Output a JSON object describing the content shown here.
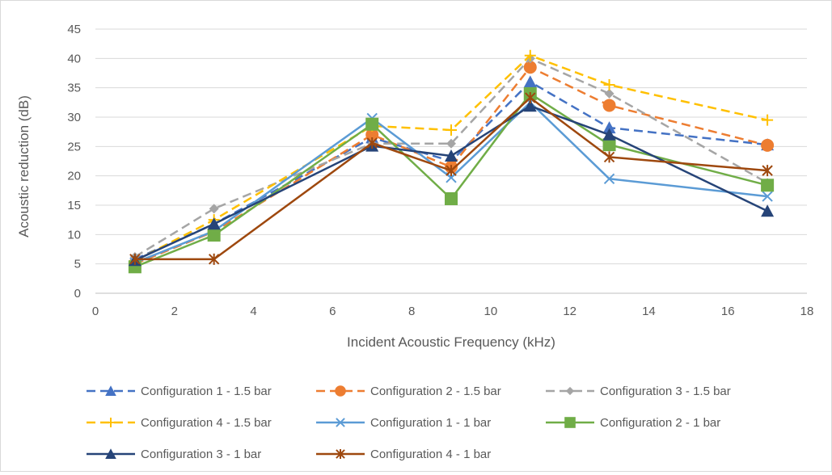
{
  "chart_data": {
    "type": "line",
    "title": "",
    "xlabel": "Incident Acoustic Frequency (kHz)",
    "ylabel": "Acoustic reduction (dB)",
    "xlim": [
      0,
      18
    ],
    "ylim": [
      0,
      45
    ],
    "x_ticks": [
      "0",
      "2",
      "4",
      "6",
      "8",
      "10",
      "12",
      "14",
      "16",
      "18"
    ],
    "y_ticks": [
      "0",
      "5",
      "10",
      "15",
      "20",
      "25",
      "30",
      "35",
      "40",
      "45"
    ],
    "grid": true,
    "legend_position": "bottom",
    "x": [
      1,
      3,
      7,
      9,
      11,
      13,
      17
    ],
    "series": [
      {
        "name": "Configuration 1 - 1.5 bar",
        "color": "#4472c4",
        "dash": "dashed",
        "marker": "triangle",
        "values": [
          5.8,
          11.8,
          26.5,
          22.5,
          36.0,
          28.2,
          25.3
        ]
      },
      {
        "name": "Configuration 2 - 1.5 bar",
        "color": "#ed7d31",
        "dash": "dashed",
        "marker": "circle",
        "values": [
          5.0,
          10.5,
          27.0,
          21.5,
          38.5,
          32.0,
          25.2
        ]
      },
      {
        "name": "Configuration 3 - 1.5 bar",
        "color": "#a5a5a5",
        "dash": "dashed",
        "marker": "diamond",
        "values": [
          6.2,
          14.4,
          25.5,
          25.5,
          40.0,
          34.0,
          18.8
        ]
      },
      {
        "name": "Configuration 4 - 1.5 bar",
        "color": "#ffc000",
        "dash": "dashed",
        "marker": "plus",
        "values": [
          5.5,
          12.5,
          28.5,
          27.8,
          40.5,
          35.5,
          29.5
        ]
      },
      {
        "name": "Configuration 1 - 1 bar",
        "color": "#5b9bd5",
        "dash": "solid",
        "marker": "x",
        "values": [
          5.2,
          10.6,
          29.8,
          19.7,
          32.5,
          19.5,
          16.5
        ]
      },
      {
        "name": "Configuration 2 - 1 bar",
        "color": "#70ad47",
        "dash": "solid",
        "marker": "square",
        "values": [
          4.5,
          9.9,
          28.8,
          16.1,
          34.0,
          25.3,
          18.4
        ]
      },
      {
        "name": "Configuration 3 - 1 bar",
        "color": "#264478",
        "dash": "solid",
        "marker": "triangle",
        "values": [
          5.6,
          11.8,
          25.1,
          23.4,
          31.9,
          27.0,
          14.0
        ]
      },
      {
        "name": "Configuration 4 - 1 bar",
        "color": "#9e480e",
        "dash": "solid",
        "marker": "star",
        "values": [
          5.8,
          5.8,
          25.6,
          20.9,
          33.3,
          23.2,
          20.9
        ]
      }
    ]
  }
}
